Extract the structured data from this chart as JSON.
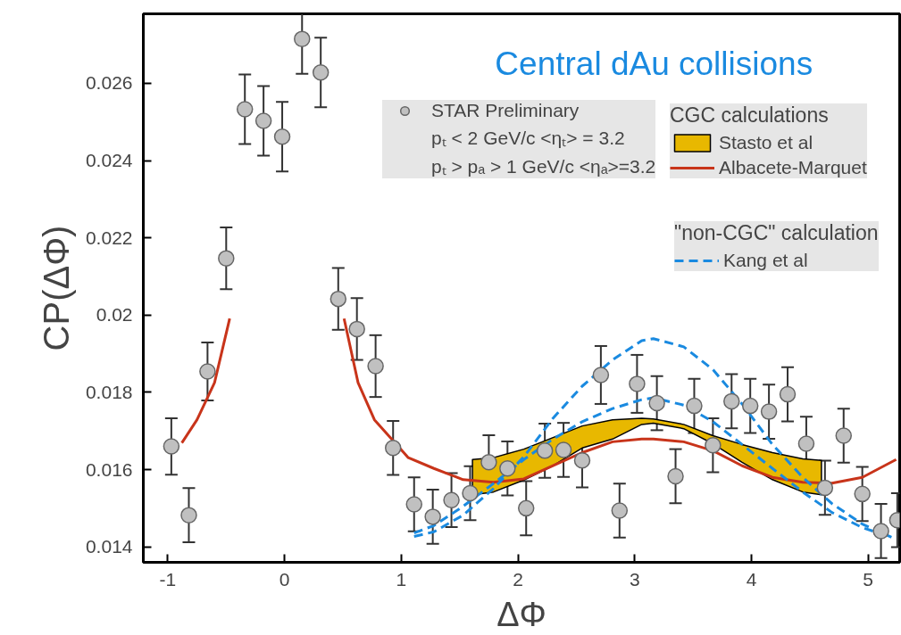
{
  "chart_data": {
    "type": "scatter",
    "title": "Central dAu collisions",
    "xlabel": "ΔΦ",
    "ylabel": "CP(ΔΦ)",
    "annotations": [
      "pₜ < 2 GeV/c <ηₜ> = 3.2",
      "pₜ > pₐ > 1 GeV/c <ηₐ>=3.2",
      "CGC calculations",
      "\"non-CGC\" calculation"
    ],
    "xlim": [
      -1.21,
      5.27
    ],
    "ylim": [
      0.0136,
      0.0278
    ],
    "xticks": [
      -1,
      0,
      1,
      2,
      3,
      4,
      5
    ],
    "yticks": [
      0.014,
      0.016,
      0.018,
      0.02,
      0.022,
      0.024,
      0.026
    ],
    "grid": false,
    "legend": "top right",
    "series": [
      {
        "name": "STAR Preliminary",
        "marker": "circle",
        "color": "#c0c0c0",
        "x": [
          -0.97,
          -0.82,
          -0.66,
          -0.5,
          -0.34,
          -0.18,
          -0.02,
          0.15,
          0.31,
          0.46,
          0.62,
          0.78,
          0.93,
          1.11,
          1.27,
          1.43,
          1.59,
          1.75,
          1.91,
          2.07,
          2.23,
          2.39,
          2.55,
          2.71,
          2.87,
          3.02,
          3.19,
          3.35,
          3.51,
          3.67,
          3.83,
          3.99,
          4.15,
          4.31,
          4.47,
          4.63,
          4.79,
          4.95,
          5.11,
          5.25
        ],
        "values": [
          0.0166,
          0.01482,
          0.01854,
          0.02147,
          0.02533,
          0.02503,
          0.02462,
          0.02715,
          0.02628,
          0.02042,
          0.01964,
          0.01868,
          0.01656,
          0.0151,
          0.01478,
          0.01521,
          0.01539,
          0.01619,
          0.01603,
          0.015,
          0.01649,
          0.01651,
          0.01624,
          0.01845,
          0.01494,
          0.01822,
          0.01772,
          0.01583,
          0.01765,
          0.01663,
          0.01777,
          0.01765,
          0.0175,
          0.01795,
          0.01667,
          0.01553,
          0.01688,
          0.01537,
          0.01441,
          0.01469
        ],
        "errors": [
          0.00073,
          0.0007,
          0.00075,
          0.0008,
          0.0009,
          0.0009,
          0.0009,
          0.0009,
          0.0009,
          0.0008,
          0.0008,
          0.0008,
          0.0007,
          0.0007,
          0.0007,
          0.0007,
          0.0007,
          0.0007,
          0.0007,
          0.0007,
          0.0007,
          0.0007,
          0.0007,
          0.00075,
          0.0007,
          0.00075,
          0.0007,
          0.0007,
          0.0007,
          0.0007,
          0.0007,
          0.0007,
          0.0007,
          0.0007,
          0.0007,
          0.0007,
          0.0007,
          0.0007,
          0.0007,
          0.0007
        ]
      },
      {
        "name": "Stasto et al",
        "type": "area",
        "color": "#e8b800",
        "x": [
          1.61,
          1.79,
          2.05,
          2.3,
          2.55,
          2.81,
          3.06,
          3.16,
          3.42,
          3.67,
          3.92,
          4.18,
          4.44,
          4.6
        ],
        "values": [
          null,
          null,
          null,
          null,
          null,
          null,
          null,
          null,
          null,
          null,
          null,
          null,
          null,
          null
        ],
        "upper": [
          0.01626,
          0.01631,
          0.01653,
          0.01683,
          0.01713,
          0.01729,
          0.01733,
          0.01731,
          0.01717,
          0.01688,
          0.01665,
          0.01644,
          0.01628,
          0.01624
        ],
        "lower": [
          0.01535,
          0.01542,
          0.01573,
          0.0161,
          0.01656,
          0.01679,
          0.01717,
          0.0172,
          0.01706,
          0.01667,
          0.01619,
          0.01574,
          0.01542,
          0.01535
        ]
      },
      {
        "name": "Albacete-Marquet",
        "type": "line",
        "color": "#c8341a",
        "line_style": "solid",
        "x": [
          -0.88,
          -0.75,
          -0.6,
          -0.47,
          null,
          0.51,
          0.63,
          0.77,
          1.06,
          1.28,
          1.53,
          1.79,
          2.05,
          2.3,
          2.55,
          2.81,
          3.06,
          3.16,
          3.42,
          3.67,
          3.92,
          4.18,
          4.44,
          4.69,
          4.95,
          5.24
        ],
        "values": [
          0.01669,
          0.01729,
          0.01825,
          0.01991,
          null,
          0.01991,
          0.01825,
          0.01729,
          0.01631,
          0.01603,
          0.01574,
          0.01567,
          0.01576,
          0.0161,
          0.01644,
          0.01672,
          0.01679,
          0.01679,
          0.01672,
          0.01649,
          0.0161,
          0.0158,
          0.01567,
          0.01565,
          0.0158,
          0.01626
        ]
      },
      {
        "name": "Kang et al",
        "type": "line",
        "color": "#1a8ae0",
        "line_style": "dashed",
        "x": [
          1.11,
          1.28,
          1.53,
          1.79,
          2.05,
          2.3,
          2.55,
          2.81,
          3.06,
          3.16,
          3.42,
          3.67,
          3.92,
          4.18,
          4.44,
          4.69,
          4.95,
          5.2
        ],
        "values": [
          0.01427,
          0.01439,
          0.01482,
          0.01551,
          0.01633,
          0.01733,
          0.01816,
          0.01884,
          0.01934,
          0.01939,
          0.01918,
          0.01859,
          0.0177,
          0.01665,
          0.0158,
          0.01512,
          0.01459,
          0.01425
        ]
      },
      {
        "type": "line",
        "color": "#1a8ae0",
        "line_style": "dashed",
        "x": [
          1.11,
          1.28,
          1.53,
          1.79,
          2.05,
          2.3,
          2.55,
          2.81,
          3.06,
          3.16,
          3.42,
          3.67,
          3.92,
          4.18,
          4.44,
          4.69,
          4.95,
          5.2
        ],
        "values": [
          0.01436,
          0.01455,
          0.01505,
          0.01564,
          0.01626,
          0.01679,
          0.01724,
          0.01758,
          0.01781,
          0.01786,
          0.01767,
          0.01724,
          0.01665,
          0.01603,
          0.01542,
          0.01489,
          0.0145,
          0.01425
        ]
      }
    ]
  }
}
